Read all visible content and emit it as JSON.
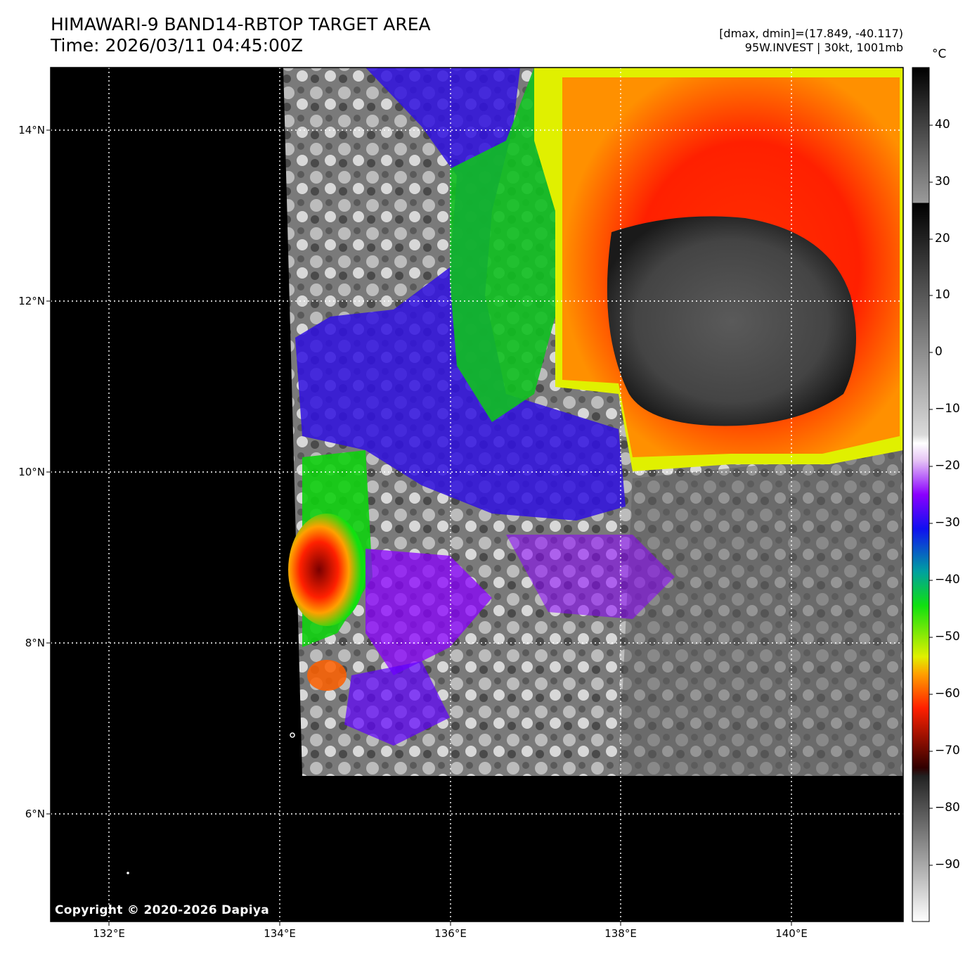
{
  "header": {
    "title": "HIMAWARI-9 BAND14-RBTOP TARGET AREA",
    "time": "Time: 2026/03/11 04:45:00Z",
    "range": "[dmax, dmin]=(17.849, -40.117)",
    "storm": "95W.INVEST | 30kt, 1001mb"
  },
  "map": {
    "lat_labels": [
      "14°N",
      "12°N",
      "10°N",
      "8°N",
      "6°N"
    ],
    "lon_labels": [
      "132°E",
      "134°E",
      "136°E",
      "138°E",
      "140°E"
    ],
    "background_color": "#000000",
    "gridline_style": "white dotted"
  },
  "colorbar": {
    "unit": "°C",
    "ticks": [
      "40",
      "30",
      "20",
      "10",
      "0",
      "−10",
      "−20",
      "−30",
      "−40",
      "−50",
      "−60",
      "−70",
      "−80",
      "−90"
    ]
  },
  "footer": {
    "copyright": "Copyright © 2020-2026 Dapiya"
  }
}
